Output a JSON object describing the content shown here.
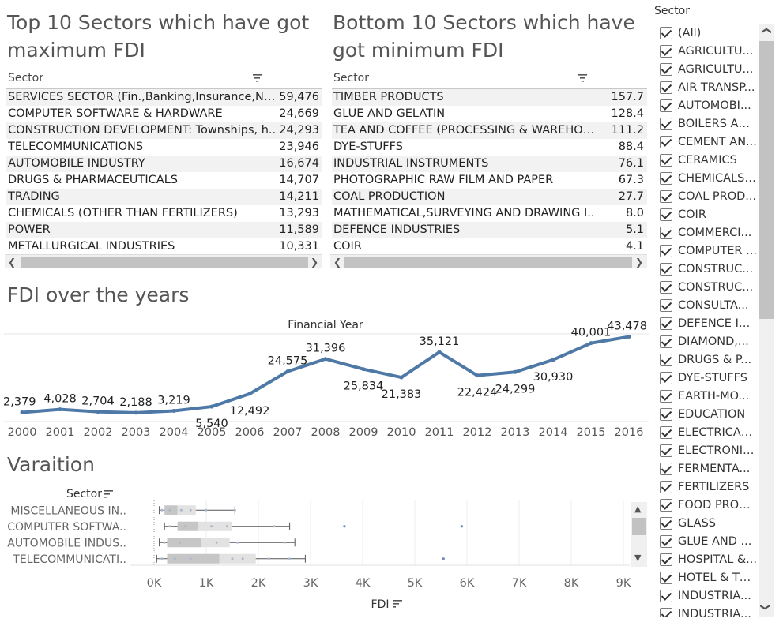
{
  "top_table": {
    "title": "Top 10 Sectors which have got maximum FDI",
    "column": "Sector",
    "rows": [
      {
        "name": "SERVICES SECTOR (Fin.,Banking,Insurance,No..",
        "value": "59,476"
      },
      {
        "name": "COMPUTER SOFTWARE & HARDWARE",
        "value": "24,669"
      },
      {
        "name": "CONSTRUCTION DEVELOPMENT: Townships, h..",
        "value": "24,293"
      },
      {
        "name": "TELECOMMUNICATIONS",
        "value": "23,946"
      },
      {
        "name": "AUTOMOBILE INDUSTRY",
        "value": "16,674"
      },
      {
        "name": "DRUGS & PHARMACEUTICALS",
        "value": "14,707"
      },
      {
        "name": "TRADING",
        "value": "14,211"
      },
      {
        "name": "CHEMICALS (OTHER THAN FERTILIZERS)",
        "value": "13,293"
      },
      {
        "name": "POWER",
        "value": "11,589"
      },
      {
        "name": "METALLURGICAL INDUSTRIES",
        "value": "10,331"
      }
    ]
  },
  "bottom_table": {
    "title": "Bottom 10 Sectors which have got minimum FDI",
    "column": "Sector",
    "rows": [
      {
        "name": "TIMBER PRODUCTS",
        "value": "157.7"
      },
      {
        "name": "GLUE AND GELATIN",
        "value": "128.4"
      },
      {
        "name": "TEA AND COFFEE (PROCESSING & WAREHOUSI..",
        "value": "111.2"
      },
      {
        "name": "DYE-STUFFS",
        "value": "88.4"
      },
      {
        "name": "INDUSTRIAL INSTRUMENTS",
        "value": "76.1"
      },
      {
        "name": "PHOTOGRAPHIC RAW FILM AND PAPER",
        "value": "67.3"
      },
      {
        "name": "COAL PRODUCTION",
        "value": "27.7"
      },
      {
        "name": "MATHEMATICAL,SURVEYING AND DRAWING I..",
        "value": "8.0"
      },
      {
        "name": "DEFENCE INDUSTRIES",
        "value": "5.1"
      },
      {
        "name": "COIR",
        "value": "4.1"
      }
    ]
  },
  "filter": {
    "title": "Sector",
    "items": [
      "(All)",
      "AGRICULTU...",
      "AGRICULTU...",
      "AIR TRANSP...",
      "AUTOMOBI...",
      "BOILERS AN...",
      "CEMENT AN...",
      "CERAMICS",
      "CHEMICALS ...",
      "COAL PROD...",
      "COIR",
      "COMMERCI...",
      "COMPUTER ...",
      "CONSTRUC...",
      "CONSTRUC...",
      "CONSULTA...",
      "DEFENCE IN...",
      "DIAMOND,...",
      "DRUGS & P...",
      "DYE-STUFFS",
      "EARTH-MO...",
      "EDUCATION",
      "ELECTRICAL...",
      "ELECTRONICS",
      "FERMENTA...",
      "FERTILIZERS",
      "FOOD PROC...",
      "GLASS",
      "GLUE AND ...",
      "HOSPITAL &...",
      "HOTEL & TO...",
      "INDUSTRIA...",
      "INDUSTRIA..."
    ]
  },
  "chart_data": [
    {
      "type": "line",
      "title": "FDI over the years",
      "xlabel": "Financial Year",
      "ylabel": "",
      "x": [
        2000,
        2001,
        2002,
        2003,
        2004,
        2005,
        2006,
        2007,
        2008,
        2009,
        2010,
        2011,
        2012,
        2013,
        2014,
        2015,
        2016
      ],
      "x_tick_labels": [
        "2000",
        "2001",
        "2002",
        "2003",
        "2004",
        "2005",
        "2006",
        "2007",
        "2008",
        "2009",
        "2010",
        "2011",
        "2012",
        "2013",
        "2014",
        "2015",
        "2016"
      ],
      "values": [
        2379,
        4028,
        2704,
        2188,
        3219,
        5540,
        12492,
        24575,
        31396,
        25834,
        21383,
        35121,
        22424,
        24299,
        30930,
        40001,
        43478
      ],
      "value_labels": [
        "2,379",
        "4,028",
        "2,704",
        "2,188",
        "3,219",
        "5,540",
        "12,492",
        "24,575",
        "31,396",
        "25,834",
        "21,383",
        "35,121",
        "22,424",
        "24,299",
        "30,930",
        "40,001",
        "43,478"
      ],
      "ylim": [
        0,
        45000
      ],
      "grid": false,
      "color": "#4e79a7"
    },
    {
      "type": "boxplot",
      "title": "Varaition",
      "ylabel": "Sector",
      "xlabel": "FDI",
      "categories": [
        "MISCELLANEOUS IN..",
        "COMPUTER SOFTWA..",
        "AUTOMOBILE INDUS..",
        "TELECOMMUNICATI.."
      ],
      "x_ticks": [
        0,
        1000,
        2000,
        3000,
        4000,
        5000,
        6000,
        7000,
        8000,
        9000
      ],
      "x_tick_labels": [
        "0K",
        "1K",
        "2K",
        "3K",
        "4K",
        "5K",
        "6K",
        "7K",
        "8K",
        "9K"
      ],
      "xlim": [
        -100,
        9200
      ],
      "boxes": [
        {
          "min": 100,
          "q1": 200,
          "median": 450,
          "q3": 800,
          "max": 1550,
          "points": [
            150,
            300,
            520,
            700,
            1000,
            1550
          ],
          "outliers": []
        },
        {
          "min": 200,
          "q1": 450,
          "median": 850,
          "q3": 1500,
          "max": 2600,
          "points": [
            300,
            600,
            1100,
            1400,
            2300
          ],
          "outliers": [
            3650,
            5900
          ]
        },
        {
          "min": 100,
          "q1": 250,
          "median": 900,
          "q3": 1450,
          "max": 2700,
          "points": [
            200,
            500,
            1200,
            1600,
            2500
          ],
          "outliers": []
        },
        {
          "min": 50,
          "q1": 250,
          "median": 1250,
          "q3": 1950,
          "max": 2900,
          "points": [
            150,
            400,
            700,
            1500,
            1700,
            2200,
            2600
          ],
          "outliers": [
            5550
          ]
        }
      ],
      "color": "#4e79a7"
    }
  ]
}
